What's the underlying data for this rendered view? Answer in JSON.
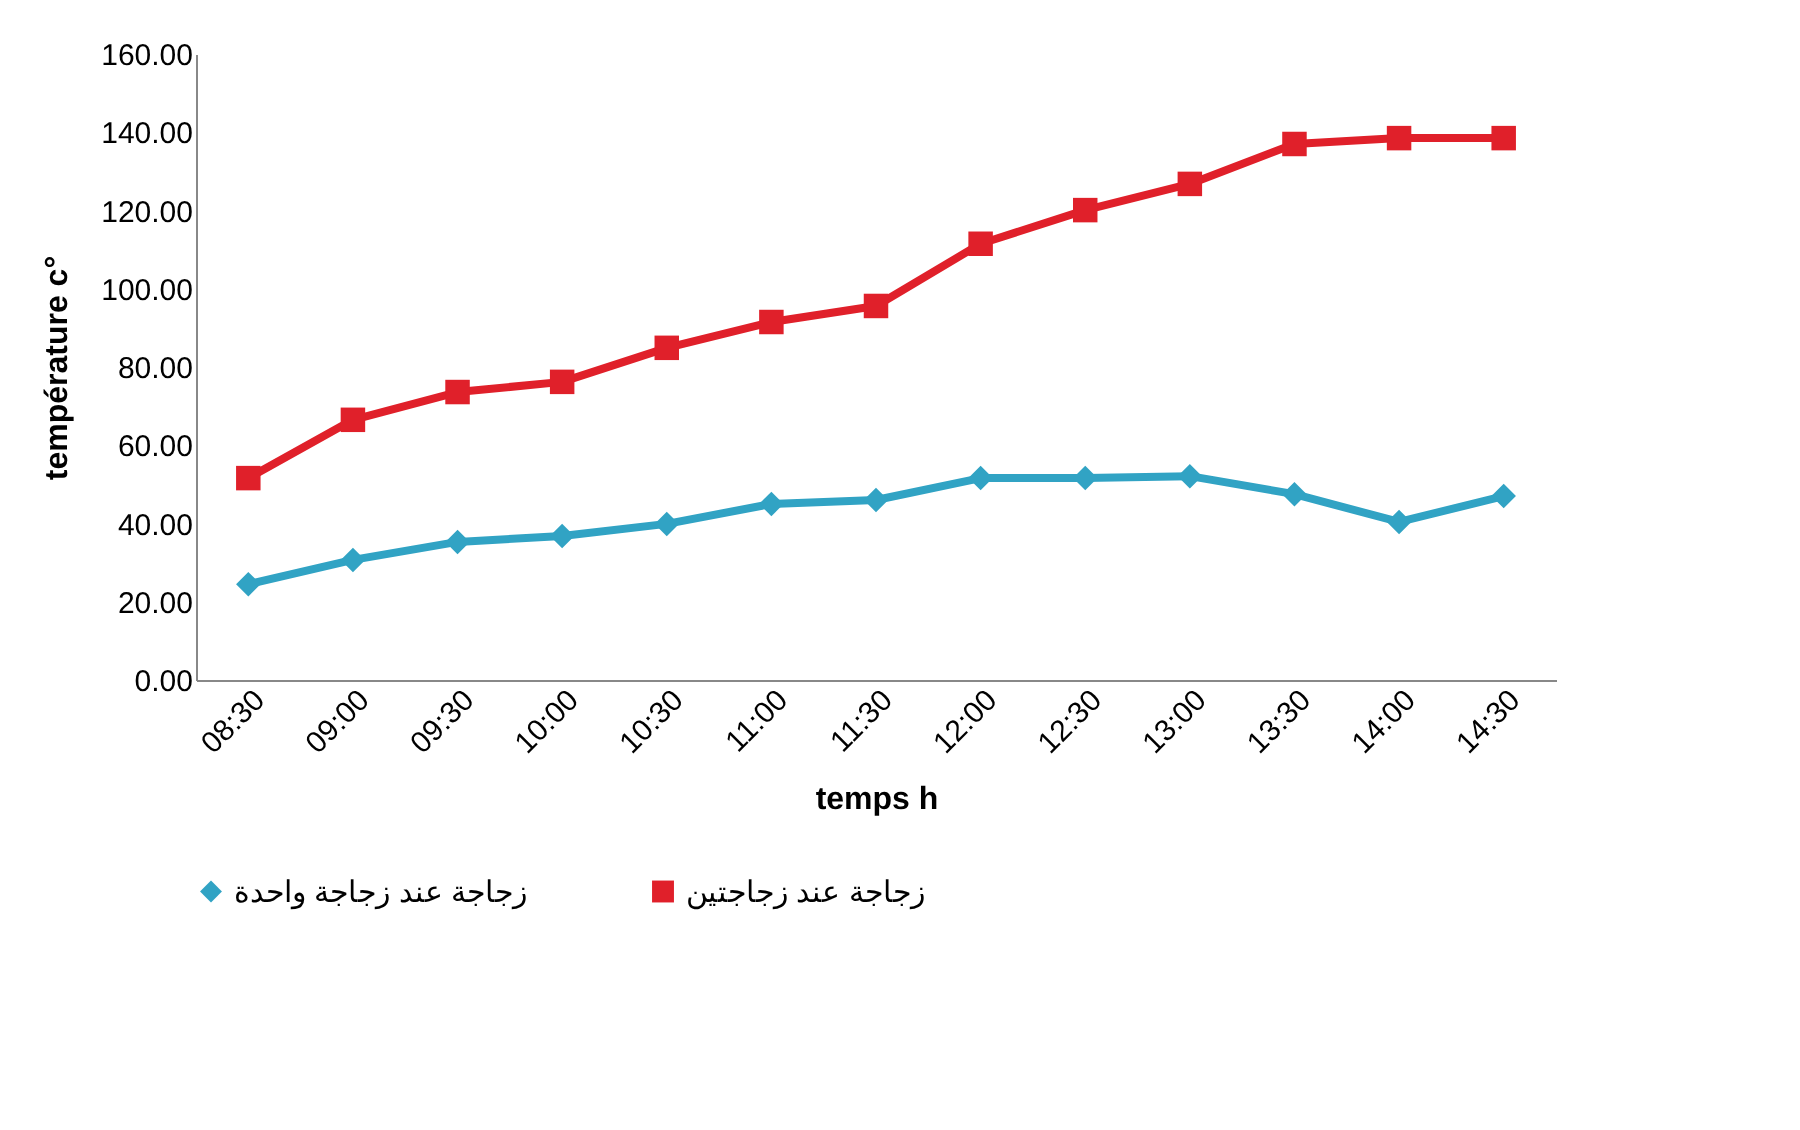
{
  "chart_data": {
    "type": "line",
    "xlabel": "temps h",
    "ylabel": "température c°",
    "categories": [
      "08:30",
      "09:00",
      "09:30",
      "10:00",
      "10:30",
      "11:00",
      "11:30",
      "12:00",
      "12:30",
      "13:00",
      "13:30",
      "14:00",
      "14:30"
    ],
    "series": [
      {
        "name": "زجاجة عند زجاجة واحدة",
        "color": "#31a3c4",
        "marker": "diamond",
        "values": [
          24.5,
          30.7,
          35.3,
          36.8,
          39.9,
          45,
          46,
          51.6,
          51.6,
          52.1,
          47.5,
          40.4,
          47
        ]
      },
      {
        "name": "زجاجة عند زجاجتين",
        "color": "#e0202a",
        "marker": "square",
        "values": [
          51.6,
          66.5,
          73.6,
          76.2,
          84.9,
          91.5,
          95.6,
          111.5,
          120.1,
          126.8,
          137,
          138.5,
          138.5
        ]
      }
    ],
    "ylim": [
      0,
      160
    ],
    "yticks": [
      {
        "value": 0,
        "label": "0.00"
      },
      {
        "value": 20,
        "label": "20.00"
      },
      {
        "value": 40,
        "label": "40.00"
      },
      {
        "value": 60,
        "label": "60.00"
      },
      {
        "value": 80,
        "label": "80.00"
      },
      {
        "value": 100,
        "label": "100.00"
      },
      {
        "value": 120,
        "label": "120.00"
      },
      {
        "value": 140,
        "label": "140.00"
      },
      {
        "value": 160,
        "label": "160.00"
      }
    ],
    "grid": false,
    "legend": "bottom",
    "line_style": "solid"
  }
}
